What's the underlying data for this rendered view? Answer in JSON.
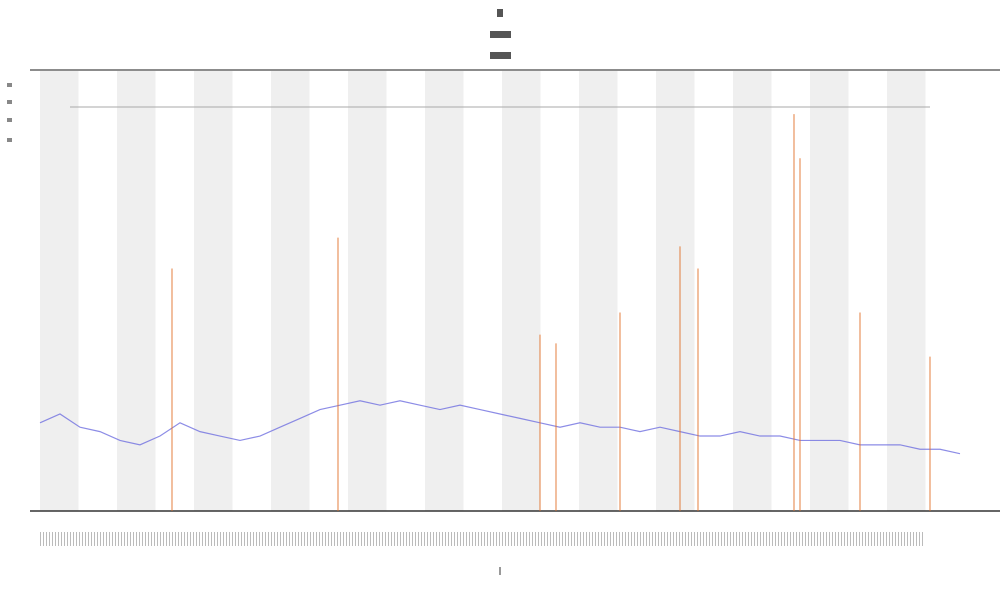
{
  "chart_data": {
    "type": "line",
    "xlim": [
      0,
      46
    ],
    "ylim": [
      0,
      100
    ],
    "x": [
      0,
      1,
      2,
      3,
      4,
      5,
      6,
      7,
      8,
      9,
      10,
      11,
      12,
      13,
      14,
      15,
      16,
      17,
      18,
      19,
      20,
      21,
      22,
      23,
      24,
      25,
      26,
      27,
      28,
      29,
      30,
      31,
      32,
      33,
      34,
      35,
      36,
      37,
      38,
      39,
      40,
      41,
      42,
      43,
      44,
      45,
      46
    ],
    "series": [
      {
        "color": "#6f6fe0",
        "mark": "line",
        "values": [
          20,
          22,
          19,
          18,
          16,
          15,
          17,
          20,
          18,
          17,
          16,
          17,
          19,
          21,
          23,
          24,
          25,
          24,
          25,
          24,
          23,
          24,
          23,
          22,
          21,
          20,
          19,
          20,
          19,
          19,
          18,
          19,
          18,
          17,
          17,
          18,
          17,
          17,
          16,
          16,
          16,
          15,
          15,
          15,
          14,
          14,
          13
        ]
      },
      {
        "color": "#e0702a",
        "mark": "spike",
        "x": [
          6.6,
          14.9,
          25,
          25.8,
          29,
          32,
          32.9,
          37.7,
          38,
          41,
          44.5
        ],
        "values": [
          55,
          62,
          40,
          38,
          45,
          60,
          55,
          90,
          80,
          45,
          35
        ]
      }
    ]
  }
}
